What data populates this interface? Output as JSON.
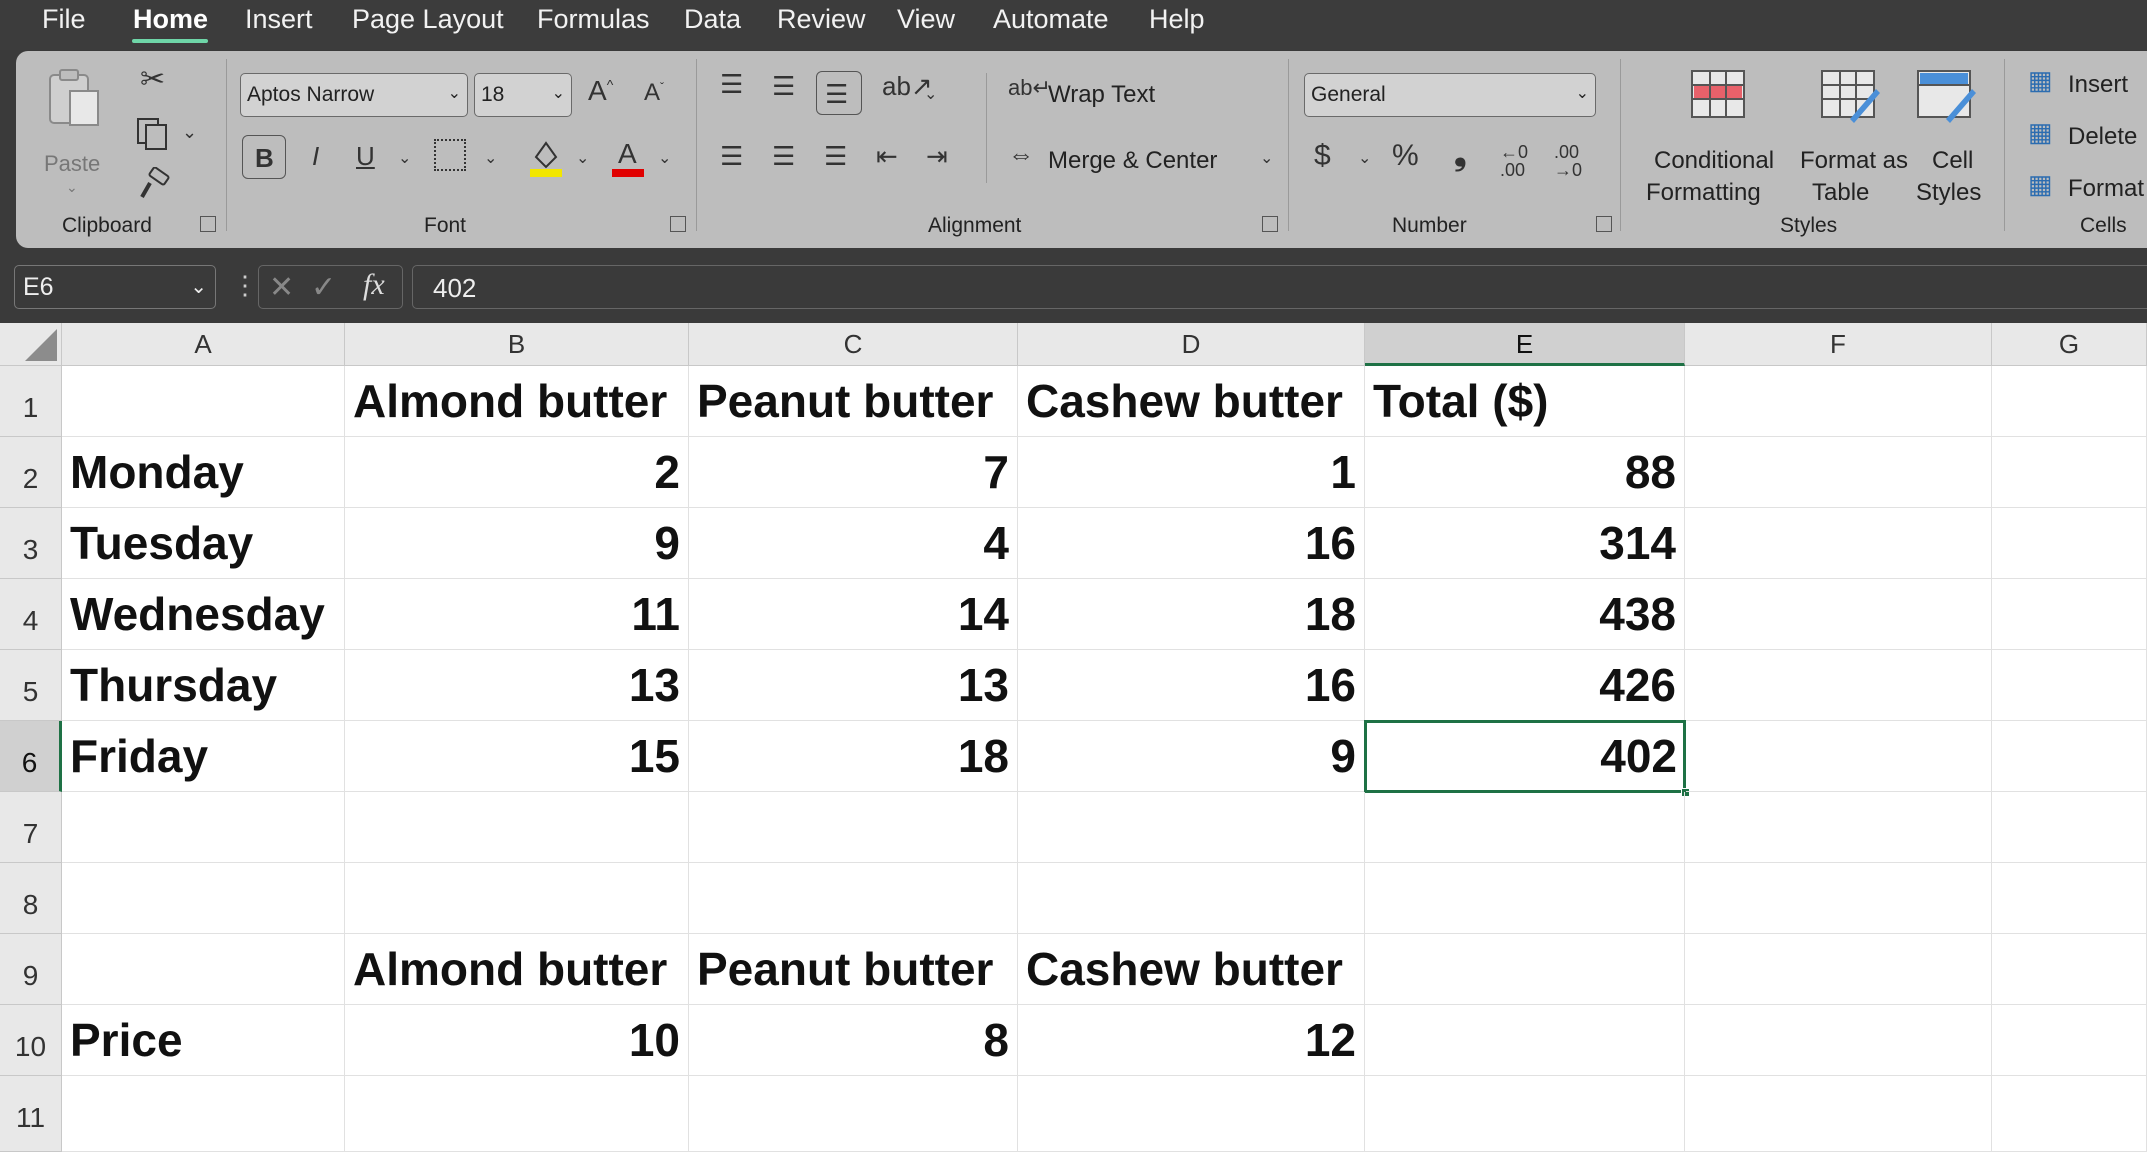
{
  "menu": {
    "items": [
      "File",
      "Home",
      "Insert",
      "Page Layout",
      "Formulas",
      "Data",
      "Review",
      "View",
      "Automate",
      "Help"
    ],
    "active": "Home"
  },
  "ribbon": {
    "clipboard": {
      "paste": "Paste",
      "group": "Clipboard"
    },
    "font": {
      "name": "Aptos Narrow",
      "size": "18",
      "bold": "B",
      "italic": "I",
      "underline": "U",
      "group": "Font"
    },
    "alignment": {
      "wrap_text": "Wrap Text",
      "merge_center": "Merge & Center",
      "group": "Alignment"
    },
    "number": {
      "format": "General",
      "currency": "$",
      "percent": "%",
      "comma": "❟",
      "group": "Number"
    },
    "styles": {
      "conditional_1": "Conditional",
      "conditional_2": "Formatting",
      "format_table_1": "Format as",
      "format_table_2": "Table",
      "cell_styles_1": "Cell",
      "cell_styles_2": "Styles",
      "group": "Styles"
    },
    "cells": {
      "insert": "Insert",
      "delete": "Delete",
      "format": "Format",
      "group": "Cells"
    }
  },
  "formula_bar": {
    "name_box": "E6",
    "fx": "fx",
    "value": "402"
  },
  "grid": {
    "columns": [
      "A",
      "B",
      "C",
      "D",
      "E",
      "F",
      "G"
    ],
    "selected_column": "E",
    "rows": [
      "1",
      "2",
      "3",
      "4",
      "5",
      "6",
      "7",
      "8",
      "9",
      "10",
      "11"
    ],
    "selected_row": "6",
    "header_row": {
      "B": "Almond butter",
      "C": "Peanut butter",
      "D": "Cashew butter",
      "E": "Total ($)"
    },
    "days": [
      {
        "A": "Monday",
        "B": "2",
        "C": "7",
        "D": "1",
        "E": "88"
      },
      {
        "A": "Tuesday",
        "B": "9",
        "C": "4",
        "D": "16",
        "E": "314"
      },
      {
        "A": "Wednesday",
        "B": "11",
        "C": "14",
        "D": "18",
        "E": "438"
      },
      {
        "A": "Thursday",
        "B": "13",
        "C": "13",
        "D": "16",
        "E": "426"
      },
      {
        "A": "Friday",
        "B": "15",
        "C": "18",
        "D": "9",
        "E": "402"
      }
    ],
    "price_header": {
      "B": "Almond butter",
      "C": "Peanut butter",
      "D": "Cashew butter"
    },
    "price_row": {
      "A": "Price",
      "B": "10",
      "C": "8",
      "D": "12"
    }
  },
  "colors": {
    "selection": "#1e7145",
    "ribbon_bg": "#bdbdbd",
    "menu_bg": "#3c3c3c"
  }
}
